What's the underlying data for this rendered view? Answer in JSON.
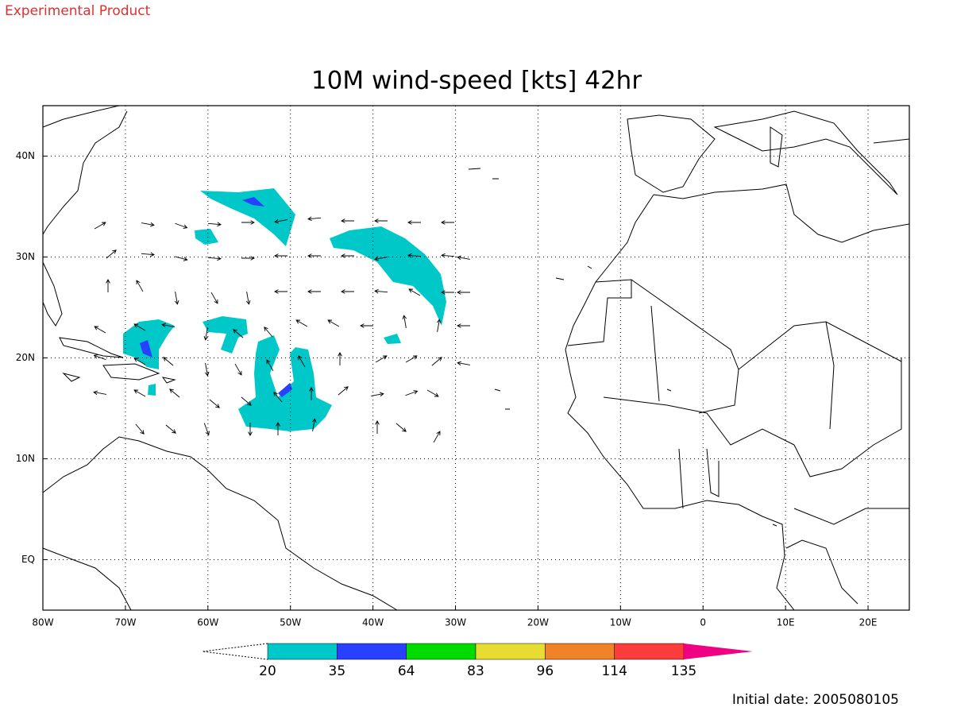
{
  "header": {
    "product": "Experimental Product"
  },
  "title": "10M wind-speed [kts] 42hr",
  "map": {
    "lonlim": [
      -80,
      25
    ],
    "latlim": [
      -5,
      45
    ],
    "lon_ticks": [
      {
        "value": -80,
        "label": "80W"
      },
      {
        "value": -70,
        "label": "70W"
      },
      {
        "value": -60,
        "label": "60W"
      },
      {
        "value": -50,
        "label": "50W"
      },
      {
        "value": -40,
        "label": "40W"
      },
      {
        "value": -30,
        "label": "30W"
      },
      {
        "value": -20,
        "label": "20W"
      },
      {
        "value": -10,
        "label": "10W"
      },
      0,
      {
        "value": 10,
        "label": "10E"
      },
      {
        "value": 20,
        "label": "20E"
      }
    ],
    "lat_ticks": [
      {
        "value": 0,
        "label": "EQ"
      },
      {
        "value": 10,
        "label": "10N"
      },
      {
        "value": 20,
        "label": "20N"
      },
      {
        "value": 30,
        "label": "30N"
      },
      {
        "value": 40,
        "label": "40N"
      }
    ]
  },
  "colorbar": {
    "levels": [
      20,
      35,
      64,
      83,
      96,
      114,
      135
    ],
    "colors": [
      "#00c8c8",
      "#2840ff",
      "#00dc00",
      "#e6dc32",
      "#f08228",
      "#fa3c3c",
      "#f00082"
    ]
  },
  "footer": {
    "initial_date": "Initial date: 2005080105"
  }
}
